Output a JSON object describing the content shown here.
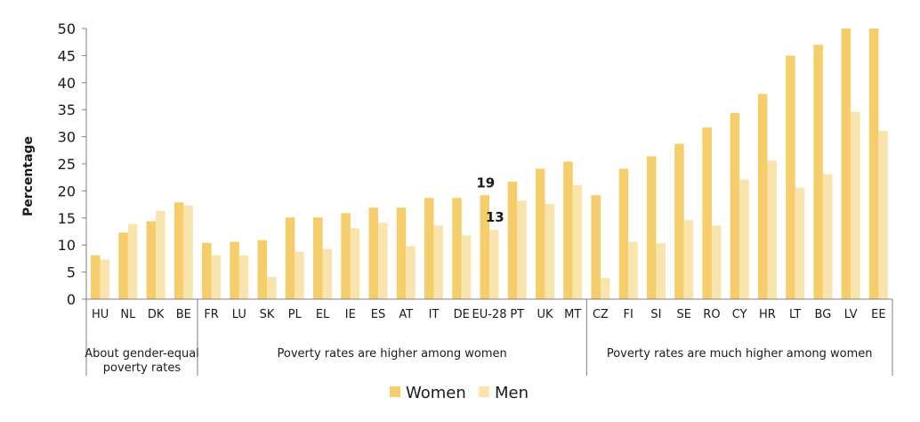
{
  "chart_data": {
    "type": "bar",
    "title": "",
    "xlabel": "",
    "ylabel": "Percentage",
    "ylim": [
      0,
      50
    ],
    "yticks": [
      0,
      5,
      10,
      15,
      20,
      25,
      30,
      35,
      40,
      45,
      50
    ],
    "grid": false,
    "legend_position": "bottom",
    "colors": {
      "Women": "#f5cd6b",
      "Men": "#f9e4ad",
      "axis": "#7f7f7f"
    },
    "categories": [
      "HU",
      "NL",
      "DK",
      "BE",
      "FR",
      "LU",
      "SK",
      "PL",
      "EL",
      "IE",
      "ES",
      "AT",
      "IT",
      "DE",
      "EU-28",
      "PT",
      "UK",
      "MT",
      "CZ",
      "FI",
      "SI",
      "SE",
      "RO",
      "CY",
      "HR",
      "LT",
      "BG",
      "LV",
      "EE"
    ],
    "series": [
      {
        "name": "Women",
        "values": [
          8.1,
          12.3,
          14.4,
          17.9,
          10.4,
          10.6,
          10.9,
          15.1,
          15.1,
          15.9,
          16.9,
          16.9,
          18.7,
          18.7,
          19.2,
          21.7,
          24.1,
          25.4,
          19.2,
          24.1,
          26.4,
          28.7,
          31.7,
          34.4,
          37.9,
          45.0,
          47.0,
          50.0,
          50.0
        ]
      },
      {
        "name": "Men",
        "values": [
          7.3,
          13.9,
          16.3,
          17.3,
          8.1,
          8.1,
          4.1,
          8.8,
          9.3,
          13.1,
          14.1,
          9.8,
          13.6,
          11.8,
          12.8,
          18.2,
          17.6,
          21.1,
          3.9,
          10.6,
          10.3,
          14.6,
          13.6,
          22.1,
          25.6,
          20.6,
          23.1,
          34.6,
          31.1
        ]
      }
    ],
    "annotations": [
      {
        "category": "EU-28",
        "series": "Women",
        "label": "19"
      },
      {
        "category": "EU-28",
        "series": "Men",
        "label": "13"
      }
    ],
    "groups": [
      {
        "label_lines": [
          "About gender-equal",
          "poverty rates"
        ],
        "start": 0,
        "end": 3
      },
      {
        "label_lines": [
          "Poverty rates are higher among women"
        ],
        "start": 4,
        "end": 17
      },
      {
        "label_lines": [
          "Poverty rates are much higher among women"
        ],
        "start": 18,
        "end": 28
      }
    ],
    "legend": [
      "Women",
      "Men"
    ]
  }
}
